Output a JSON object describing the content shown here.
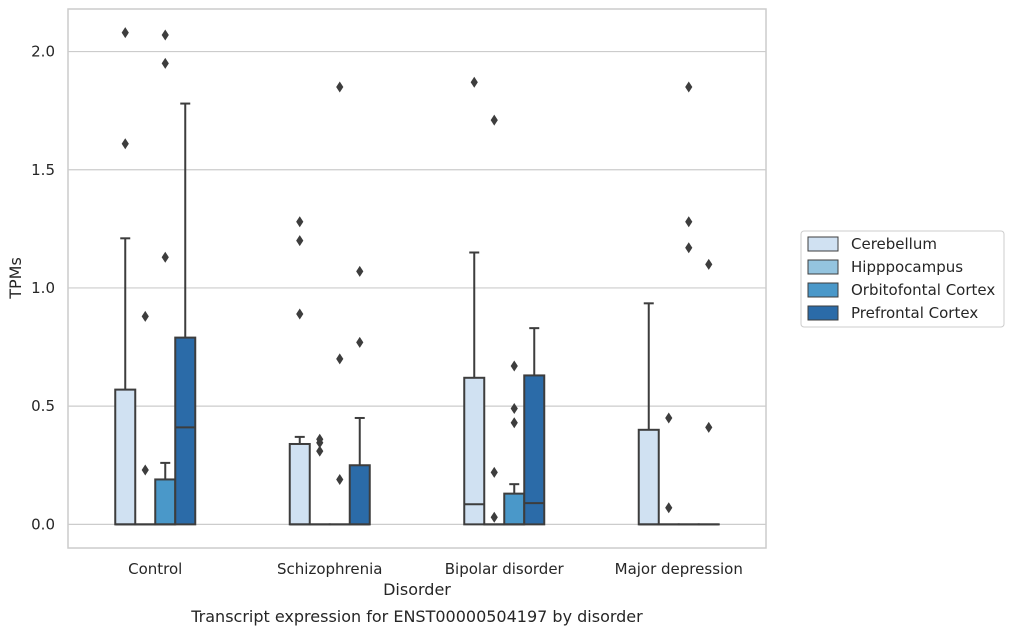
{
  "chart_data": {
    "type": "boxplot",
    "title": "Transcript expression for ENST00000504197 by disorder",
    "xlabel": "Disorder",
    "ylabel": "TPMs",
    "ylim": [
      -0.1,
      2.18
    ],
    "yticks": [
      0.0,
      0.5,
      1.0,
      1.5,
      2.0
    ],
    "ytick_labels": [
      "0.0",
      "0.5",
      "1.0",
      "1.5",
      "2.0"
    ],
    "grid": true,
    "legend_position": "right",
    "categories": [
      "Control",
      "Schizophrenia",
      "Bipolar disorder",
      "Major depression"
    ],
    "series": [
      {
        "name": "Cerebellum",
        "color": "#d0e1f2",
        "boxes": [
          {
            "q1": 0.0,
            "median": 0.0,
            "q3": 0.57,
            "whisker_low": 0.0,
            "whisker_high": 1.21,
            "outliers": [
              1.61,
              2.08
            ]
          },
          {
            "q1": 0.0,
            "median": 0.0,
            "q3": 0.34,
            "whisker_low": 0.0,
            "whisker_high": 0.37,
            "outliers": [
              0.89,
              1.2,
              1.28
            ]
          },
          {
            "q1": 0.0,
            "median": 0.085,
            "q3": 0.62,
            "whisker_low": 0.0,
            "whisker_high": 1.15,
            "outliers": [
              1.87
            ]
          },
          {
            "q1": 0.0,
            "median": 0.0,
            "q3": 0.4,
            "whisker_low": 0.0,
            "whisker_high": 0.935,
            "outliers": []
          }
        ]
      },
      {
        "name": "Hipppocampus",
        "color": "#94c4df",
        "boxes": [
          {
            "q1": 0.0,
            "median": 0.0,
            "q3": 0.0,
            "whisker_low": 0.0,
            "whisker_high": 0.0,
            "outliers": [
              0.23,
              0.88
            ]
          },
          {
            "q1": 0.0,
            "median": 0.0,
            "q3": 0.0,
            "whisker_low": 0.0,
            "whisker_high": 0.0,
            "outliers": [
              0.31,
              0.345,
              0.36
            ]
          },
          {
            "q1": 0.0,
            "median": 0.0,
            "q3": 0.0,
            "whisker_low": 0.0,
            "whisker_high": 0.0,
            "outliers": [
              0.03,
              0.22,
              1.71
            ]
          },
          {
            "q1": 0.0,
            "median": 0.0,
            "q3": 0.0,
            "whisker_low": 0.0,
            "whisker_high": 0.0,
            "outliers": [
              0.07,
              0.45
            ]
          }
        ]
      },
      {
        "name": "Orbitofontal Cortex",
        "color": "#4a98c9",
        "boxes": [
          {
            "q1": 0.0,
            "median": 0.0,
            "q3": 0.19,
            "whisker_low": 0.0,
            "whisker_high": 0.26,
            "outliers": [
              1.13,
              1.95,
              2.07
            ]
          },
          {
            "q1": 0.0,
            "median": 0.0,
            "q3": 0.0,
            "whisker_low": 0.0,
            "whisker_high": 0.0,
            "outliers": [
              0.19,
              0.7,
              1.85
            ]
          },
          {
            "q1": 0.0,
            "median": 0.0,
            "q3": 0.13,
            "whisker_low": 0.0,
            "whisker_high": 0.17,
            "outliers": [
              0.43,
              0.49,
              0.67
            ]
          },
          {
            "q1": 0.0,
            "median": 0.0,
            "q3": 0.0,
            "whisker_low": 0.0,
            "whisker_high": 0.0,
            "outliers": [
              1.17,
              1.28,
              1.85
            ]
          }
        ]
      },
      {
        "name": "Prefrontal Cortex",
        "color": "#2b6ba8",
        "boxes": [
          {
            "q1": 0.0,
            "median": 0.41,
            "q3": 0.79,
            "whisker_low": 0.0,
            "whisker_high": 1.78,
            "outliers": []
          },
          {
            "q1": 0.0,
            "median": 0.0,
            "q3": 0.25,
            "whisker_low": 0.0,
            "whisker_high": 0.45,
            "outliers": [
              0.77,
              1.07
            ]
          },
          {
            "q1": 0.0,
            "median": 0.09,
            "q3": 0.63,
            "whisker_low": 0.0,
            "whisker_high": 0.83,
            "outliers": []
          },
          {
            "q1": 0.0,
            "median": 0.0,
            "q3": 0.0,
            "whisker_low": 0.0,
            "whisker_high": 0.0,
            "outliers": [
              0.41,
              1.1
            ]
          }
        ]
      }
    ]
  }
}
